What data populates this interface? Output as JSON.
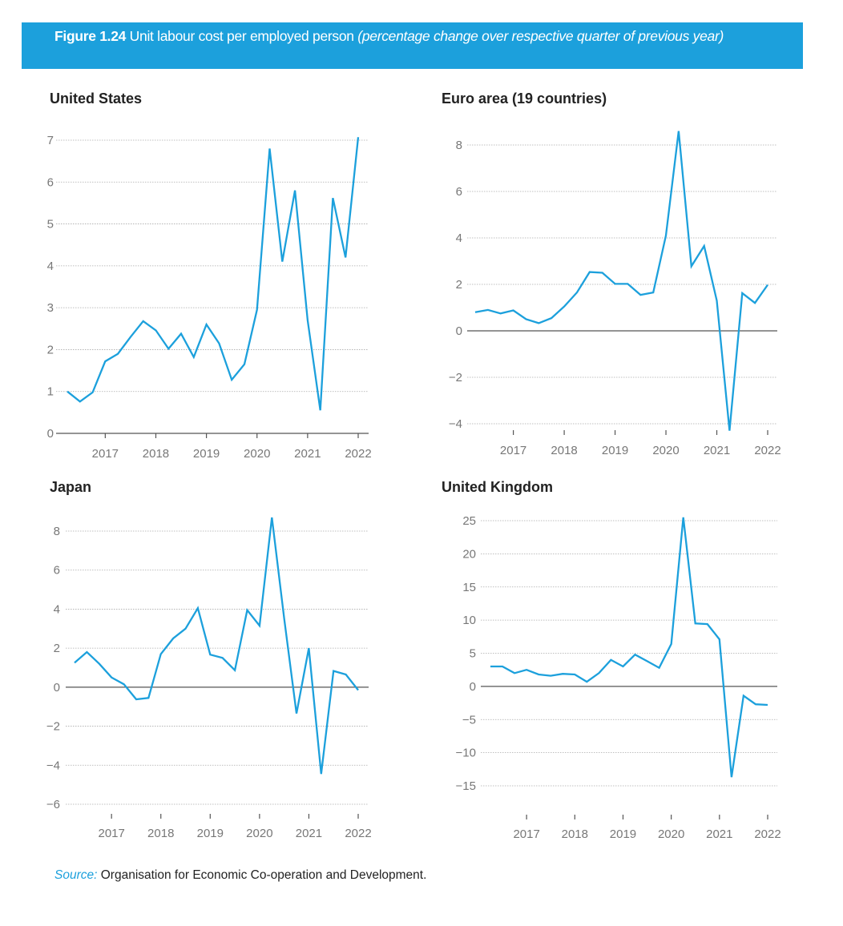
{
  "figure": {
    "label": "Figure 1.24",
    "title": "Unit labour cost per employed person",
    "subtitle": "(percentage change over respective quarter of previous year)"
  },
  "source": {
    "label": "Source:",
    "text": "Organisation for Economic Co-operation and Development."
  },
  "colors": {
    "line": "#1ca0dc",
    "banner": "#1ca0dc",
    "axis": "#555555",
    "grid": "#aaaaaa"
  },
  "chart_data": [
    {
      "type": "line",
      "title": "United States",
      "x": [
        "2016Q2",
        "2016Q3",
        "2016Q4",
        "2017Q1",
        "2017Q2",
        "2017Q3",
        "2017Q4",
        "2018Q1",
        "2018Q2",
        "2018Q3",
        "2018Q4",
        "2019Q1",
        "2019Q2",
        "2019Q3",
        "2019Q4",
        "2020Q1",
        "2020Q2",
        "2020Q3",
        "2020Q4",
        "2021Q1",
        "2021Q2",
        "2021Q3",
        "2021Q4",
        "2022Q1"
      ],
      "values": [
        1.0,
        0.76,
        0.98,
        1.72,
        1.9,
        2.3,
        2.68,
        2.46,
        2.02,
        2.38,
        1.82,
        2.6,
        2.15,
        1.28,
        1.65,
        2.95,
        6.8,
        4.1,
        5.8,
        2.7,
        0.55,
        5.62,
        4.2,
        7.07
      ],
      "yticks": [
        0,
        1,
        2,
        3,
        4,
        5,
        6,
        7
      ],
      "xticks": [
        "2017",
        "2018",
        "2019",
        "2020",
        "2021",
        "2022"
      ],
      "ylim": [
        0,
        7
      ],
      "grid": true
    },
    {
      "type": "line",
      "title": "Euro area (19 countries)",
      "x": [
        "2016Q2",
        "2016Q3",
        "2016Q4",
        "2017Q1",
        "2017Q2",
        "2017Q3",
        "2017Q4",
        "2018Q1",
        "2018Q2",
        "2018Q3",
        "2018Q4",
        "2019Q1",
        "2019Q2",
        "2019Q3",
        "2019Q4",
        "2020Q1",
        "2020Q2",
        "2020Q3",
        "2020Q4",
        "2021Q1",
        "2021Q2",
        "2021Q3",
        "2021Q4",
        "2022Q1"
      ],
      "values": [
        0.8,
        0.9,
        0.75,
        0.88,
        0.5,
        0.33,
        0.55,
        1.05,
        1.65,
        2.53,
        2.5,
        2.02,
        2.02,
        1.55,
        1.65,
        4.1,
        8.6,
        2.78,
        3.65,
        1.3,
        -4.3,
        1.62,
        1.2,
        1.98
      ],
      "yticks": [
        -4,
        -2,
        0,
        2,
        4,
        6,
        8
      ],
      "xticks": [
        "2017",
        "2018",
        "2019",
        "2020",
        "2021",
        "2022"
      ],
      "ylim": [
        -4,
        8
      ],
      "grid": true
    },
    {
      "type": "line",
      "title": "Japan",
      "x": [
        "2016Q2",
        "2016Q3",
        "2016Q4",
        "2017Q1",
        "2017Q2",
        "2017Q3",
        "2017Q4",
        "2018Q1",
        "2018Q2",
        "2018Q3",
        "2018Q4",
        "2019Q1",
        "2019Q2",
        "2019Q3",
        "2019Q4",
        "2020Q1",
        "2020Q2",
        "2020Q3",
        "2020Q4",
        "2021Q1",
        "2021Q2",
        "2021Q3",
        "2021Q4",
        "2022Q1"
      ],
      "values": [
        1.25,
        1.8,
        1.2,
        0.5,
        0.15,
        -0.62,
        -0.55,
        1.7,
        2.5,
        3.0,
        4.05,
        1.67,
        1.5,
        0.87,
        3.95,
        3.15,
        8.7,
        3.5,
        -1.35,
        2.0,
        -4.45,
        0.83,
        0.65,
        -0.15
      ],
      "yticks": [
        -6,
        -4,
        -2,
        0,
        2,
        4,
        6,
        8
      ],
      "xticks": [
        "2017",
        "2018",
        "2019",
        "2020",
        "2021",
        "2022"
      ],
      "ylim": [
        -6,
        8
      ],
      "grid": true
    },
    {
      "type": "line",
      "title": "United Kingdom",
      "x": [
        "2016Q2",
        "2016Q3",
        "2016Q4",
        "2017Q1",
        "2017Q2",
        "2017Q3",
        "2017Q4",
        "2018Q1",
        "2018Q2",
        "2018Q3",
        "2018Q4",
        "2019Q1",
        "2019Q2",
        "2019Q3",
        "2019Q4",
        "2020Q1",
        "2020Q2",
        "2020Q3",
        "2020Q4",
        "2021Q1",
        "2021Q2",
        "2021Q3",
        "2021Q4",
        "2022Q1"
      ],
      "values": [
        3.0,
        3.0,
        2.0,
        2.5,
        1.8,
        1.6,
        1.9,
        1.8,
        0.7,
        2.0,
        4.0,
        3.0,
        4.8,
        3.8,
        2.8,
        6.4,
        25.5,
        9.5,
        9.4,
        7.1,
        -13.7,
        -1.4,
        -2.7,
        -2.8
      ],
      "yticks": [
        -15,
        -10,
        -5,
        0,
        5,
        10,
        15,
        20,
        25
      ],
      "xticks": [
        "2017",
        "2018",
        "2019",
        "2020",
        "2021",
        "2022"
      ],
      "ylim": [
        -15,
        25
      ],
      "grid": true
    }
  ]
}
